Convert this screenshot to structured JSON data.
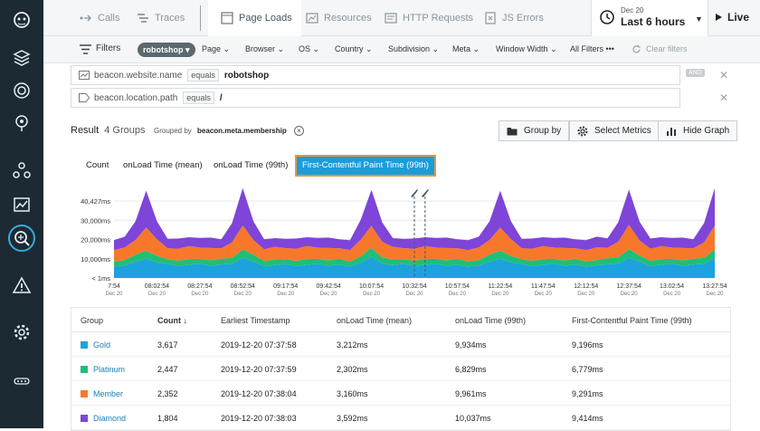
{
  "colors": {
    "gold": "#1ea2dd",
    "platinum": "#1fbf76",
    "member": "#f7782b",
    "diamond": "#7e45d8",
    "accent": "#1a9ddb",
    "sidebar": "#1b2a33"
  },
  "sidebar": {
    "icons": [
      "app-logo-icon",
      "layers-icon",
      "globe-icon",
      "satellite-icon",
      "network-icon",
      "analytics-icon",
      "search-analytics-icon",
      "alert-icon",
      "settings-icon",
      "more-icon"
    ]
  },
  "topbar": {
    "tabs": [
      {
        "label": "Calls",
        "icon": "calls-icon"
      },
      {
        "label": "Traces",
        "icon": "traces-icon"
      },
      {
        "label": "Page Loads",
        "icon": "page-loads-icon"
      },
      {
        "label": "Resources",
        "icon": "resources-icon"
      },
      {
        "label": "HTTP Requests",
        "icon": "http-icon"
      },
      {
        "label": "JS Errors",
        "icon": "js-errors-icon"
      }
    ],
    "date": "Dec 20",
    "range": "Last 6 hours",
    "live_label": "Live"
  },
  "filterbar": {
    "filters_label": "Filters",
    "chip": "robotshop ▾",
    "items": [
      "Page ⌄",
      "Browser ⌄",
      "OS ⌄",
      "Country ⌄",
      "Subdivision ⌄",
      "Meta ⌄",
      "Window Width ⌄",
      "All Filters •••"
    ],
    "clear": "Clear filters"
  },
  "filters": [
    {
      "field": "beacon.website.name",
      "op": "equals",
      "value": "robotshop"
    },
    {
      "field": "beacon.location.path",
      "op": "equals",
      "value": "/"
    }
  ],
  "and_tag": "AND",
  "result": {
    "title": "Result",
    "groups": "4 Groups",
    "grouped_by_label": "Grouped by",
    "grouped_by_value": "beacon.meta.membership",
    "buttons": {
      "group_by": "Group by",
      "select_metrics": "Select Metrics",
      "hide_graph": "Hide Graph"
    }
  },
  "chart_tabs": [
    "Count",
    "onLoad Time (mean)",
    "onLoad Time (99th)",
    "First-Contentful Paint Time (99th)"
  ],
  "chart_data": {
    "type": "area",
    "stacked": true,
    "y_ticks": [
      "40,427ms",
      "30,000ms",
      "20,000ms",
      "10,000ms",
      "< 1ms"
    ],
    "ylim": [
      0,
      40427
    ],
    "x_ticks": [
      "7:54",
      "08:02:54",
      "08:27:54",
      "08:52:54",
      "09:17:54",
      "09:42:54",
      "10:07:54",
      "10:32:54",
      "10:57:54",
      "11:22:54",
      "11:47:54",
      "12:12:54",
      "12:37:54",
      "13:02:54",
      "13:27:54"
    ],
    "x_sub": "Dec 20",
    "n_points": 57,
    "spike_indices": [
      3,
      12,
      24,
      36,
      48,
      56
    ],
    "marker_indices": [
      28,
      29
    ],
    "series": [
      {
        "name": "Gold",
        "base": 6000,
        "spike": 4000
      },
      {
        "name": "Platinum",
        "base": 2500,
        "spike": 1500
      },
      {
        "name": "Member",
        "base": 5500,
        "spike": 6000
      },
      {
        "name": "Diamond",
        "base": 4500,
        "spike": 14000
      }
    ]
  },
  "table": {
    "headers": [
      "Group",
      "Count ↓",
      "Earliest Timestamp",
      "onLoad Time (mean)",
      "onLoad Time (99th)",
      "First-Contentful Paint Time (99th)"
    ],
    "rows": [
      {
        "group": "Gold",
        "color": "#1ea2dd",
        "count": "3,617",
        "ts": "2019-12-20 07:37:58",
        "mean": "3,212ms",
        "p99": "9,934ms",
        "fcp": "9,196ms"
      },
      {
        "group": "Platinum",
        "color": "#1fbf76",
        "count": "2,447",
        "ts": "2019-12-20 07:37:59",
        "mean": "2,302ms",
        "p99": "6,829ms",
        "fcp": "6,779ms"
      },
      {
        "group": "Member",
        "color": "#f7782b",
        "count": "2,352",
        "ts": "2019-12-20 07:38:04",
        "mean": "3,160ms",
        "p99": "9,961ms",
        "fcp": "9,291ms"
      },
      {
        "group": "Diamond",
        "color": "#7e45d8",
        "count": "1,804",
        "ts": "2019-12-20 07:38:03",
        "mean": "3,592ms",
        "p99": "10,037ms",
        "fcp": "9,414ms"
      }
    ]
  }
}
